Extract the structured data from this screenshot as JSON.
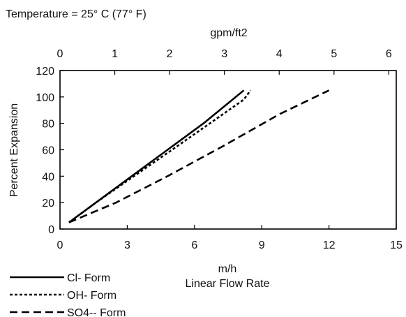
{
  "chart_data": {
    "type": "line",
    "subtitle": "Temperature = 25° C (77° F)",
    "top_axis_label": "gpm/ft2",
    "top_axis_ticks": [
      "0",
      "1",
      "2",
      "3",
      "4",
      "5",
      "6"
    ],
    "xlabel_unit": "m/h",
    "xlabel": "Linear Flow Rate",
    "ylabel": "Percent Expansion",
    "xlim": [
      0,
      15
    ],
    "ylim": [
      0,
      120
    ],
    "x_ticks": [
      "0",
      "3",
      "6",
      "9",
      "12",
      "15"
    ],
    "y_ticks": [
      "0",
      "20",
      "40",
      "60",
      "80",
      "100",
      "120"
    ],
    "grid": false,
    "legend_position": "bottom-left",
    "series": [
      {
        "name": "Cl- Form",
        "style": "solid",
        "color": "#000000",
        "x": [
          0.4,
          1.6,
          3.2,
          4.8,
          6.4,
          8.2
        ],
        "y": [
          5,
          20,
          40,
          60,
          80,
          105
        ]
      },
      {
        "name": "OH- Form",
        "style": "dotted",
        "color": "#000000",
        "x": [
          0.4,
          1.6,
          3.3,
          5.0,
          6.6,
          8.2,
          8.5
        ],
        "y": [
          5,
          20,
          40,
          60,
          79,
          98,
          105
        ]
      },
      {
        "name": "SO4-- Form",
        "style": "dashed",
        "color": "#000000",
        "x": [
          0.4,
          2.5,
          4.8,
          7.3,
          9.8,
          12.0
        ],
        "y": [
          5,
          20,
          40,
          63,
          87,
          105
        ]
      }
    ]
  }
}
